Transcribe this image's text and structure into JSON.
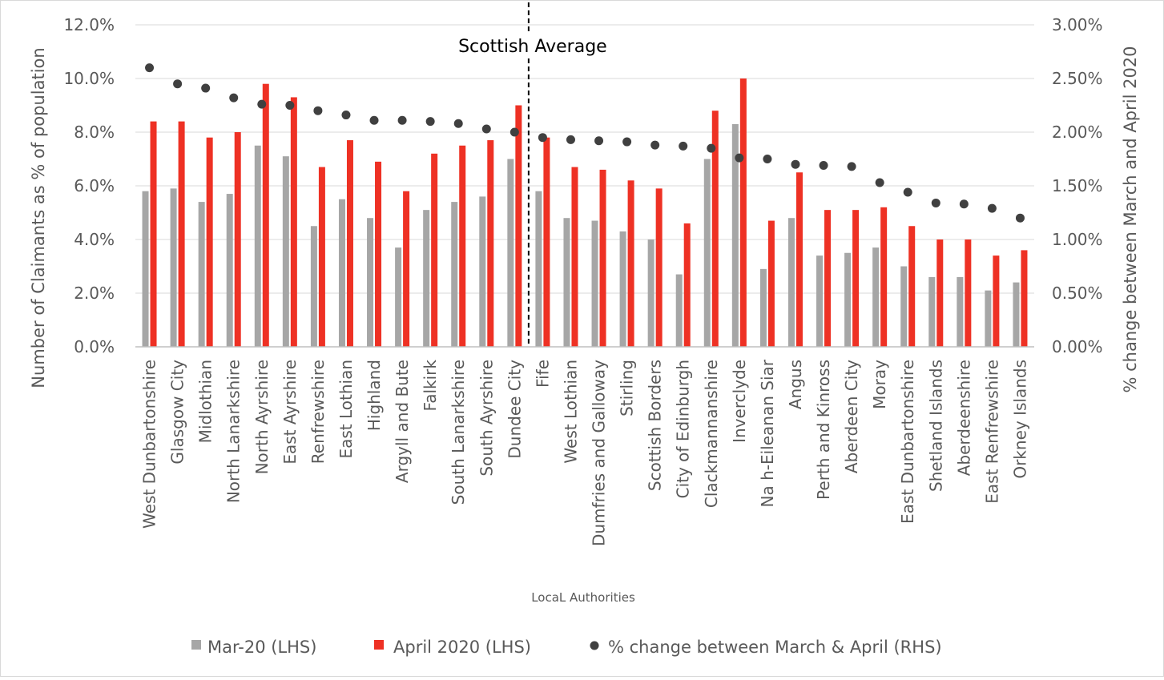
{
  "chart_data": {
    "type": "bar",
    "categories": [
      "West Dunbartonshire",
      "Glasgow City",
      "Midlothian",
      "North Lanarkshire",
      "North Ayrshire",
      "East Ayrshire",
      "Renfrewshire",
      "East Lothian",
      "Highland",
      "Argyll and Bute",
      "Falkirk",
      "South Lanarkshire",
      "South Ayrshire",
      "Dundee City",
      "Fife",
      "West Lothian",
      "Dumfries and Galloway",
      "Stirling",
      "Scottish Borders",
      "City of Edinburgh",
      "Clackmannanshire",
      "Inverclyde",
      "Na h-Eileanan Siar",
      "Angus",
      "Perth and Kinross",
      "Aberdeen City",
      "Moray",
      "East Dunbartonshire",
      "Shetland Islands",
      "Aberdeenshire",
      "East Renfrewshire",
      "Orkney Islands"
    ],
    "series": [
      {
        "name": "Mar-20 (LHS)",
        "type": "bar",
        "axis": "left",
        "color": "#a6a6a6",
        "values": [
          5.8,
          5.9,
          5.4,
          5.7,
          7.5,
          7.1,
          4.5,
          5.5,
          4.8,
          3.7,
          5.1,
          5.4,
          5.6,
          7.0,
          5.8,
          4.8,
          4.7,
          4.3,
          4.0,
          2.7,
          7.0,
          8.3,
          2.9,
          4.8,
          3.4,
          3.5,
          3.7,
          3.0,
          2.6,
          2.6,
          2.1,
          2.4
        ]
      },
      {
        "name": "April 2020 (LHS)",
        "type": "bar",
        "axis": "left",
        "color": "#ee3124",
        "values": [
          8.4,
          8.4,
          7.8,
          8.0,
          9.8,
          9.3,
          6.7,
          7.7,
          6.9,
          5.8,
          7.2,
          7.5,
          7.7,
          9.0,
          7.8,
          6.7,
          6.6,
          6.2,
          5.9,
          4.6,
          8.8,
          10.0,
          4.7,
          6.5,
          5.1,
          5.1,
          5.2,
          4.5,
          4.0,
          4.0,
          3.4,
          3.6
        ]
      },
      {
        "name": "% change between March & April (RHS)",
        "type": "scatter",
        "axis": "right",
        "color": "#404040",
        "values": [
          2.6,
          2.45,
          2.41,
          2.32,
          2.26,
          2.25,
          2.2,
          2.16,
          2.11,
          2.11,
          2.1,
          2.08,
          2.03,
          2.0,
          1.95,
          1.93,
          1.92,
          1.91,
          1.88,
          1.87,
          1.85,
          1.76,
          1.75,
          1.7,
          1.69,
          1.68,
          1.53,
          1.44,
          1.34,
          1.33,
          1.29,
          1.2
        ]
      }
    ],
    "ylabel": "Number of Claimants as % of population",
    "y2label": "% change between March and April 2020",
    "xlabel": "LocaL Authorities",
    "ylim": [
      0,
      12
    ],
    "y2lim": [
      0,
      3
    ],
    "yticks": [
      "0.0%",
      "2.0%",
      "4.0%",
      "6.0%",
      "8.0%",
      "10.0%",
      "12.0%"
    ],
    "y2ticks": [
      "0.00%",
      "0.50%",
      "1.00%",
      "1.50%",
      "2.00%",
      "2.50%",
      "3.00%"
    ],
    "annotation": {
      "text": "Scottish Average",
      "after_category": "Dundee City"
    },
    "grid": true,
    "legend_position": "bottom"
  }
}
